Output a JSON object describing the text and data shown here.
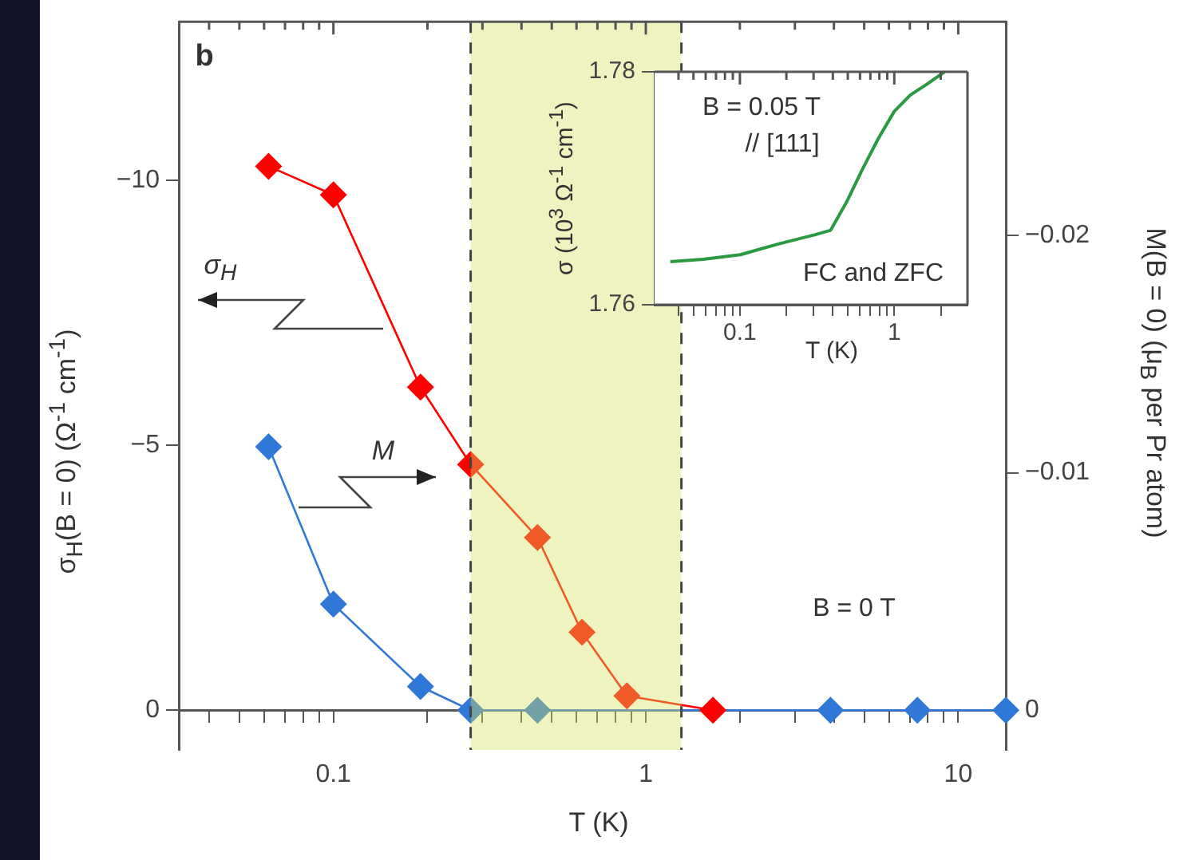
{
  "chart_data": [
    {
      "type": "line",
      "xlabel": "T (K)",
      "ylabel": "σ$_{H}$(B = 0) (Ω$^{-1}$ cm$^{-1}$)",
      "y2label": "M(B = 0) (μ$_{B}$ per Pr atom)",
      "annotations": [
        "b",
        "σ$_{H}$",
        "M",
        "B = 0 T"
      ],
      "log": "x",
      "marker": "diamond",
      "xlim": [
        0.032,
        14.2
      ],
      "xticks": [
        {
          "value": 0.04,
          "label": null
        },
        {
          "value": 0.05,
          "label": null
        },
        {
          "value": 0.06,
          "label": null
        },
        {
          "value": 0.07,
          "label": null
        },
        {
          "value": 0.08,
          "label": null
        },
        {
          "value": 0.09,
          "label": null
        },
        0.1,
        {
          "value": 0.2,
          "label": null
        },
        {
          "value": 0.3,
          "label": null
        },
        {
          "value": 0.4,
          "label": null
        },
        {
          "value": 0.5,
          "label": null
        },
        {
          "value": 0.6,
          "label": null
        },
        {
          "value": 0.7,
          "label": null
        },
        {
          "value": 0.8,
          "label": null
        },
        {
          "value": 0.9,
          "label": null
        },
        1,
        {
          "value": 2,
          "label": null
        },
        {
          "value": 3,
          "label": null
        },
        {
          "value": 4,
          "label": null
        },
        {
          "value": 5,
          "label": null
        },
        {
          "value": 6,
          "label": null
        },
        {
          "value": 7,
          "label": null
        },
        {
          "value": 8,
          "label": null
        },
        {
          "value": 9,
          "label": null
        },
        10
      ],
      "ylim": [
        0.75,
        -13
      ],
      "yticks": [
        {
          "value": 0,
          "label": "0"
        },
        {
          "value": -5,
          "label": "−5"
        },
        {
          "value": -10,
          "label": "−10"
        }
      ],
      "y2lim": [
        0.00167,
        -0.029
      ],
      "y2ticks": [
        {
          "value": 0,
          "label": "0"
        },
        {
          "value": -0.01,
          "label": "−0.01"
        },
        {
          "value": -0.02,
          "label": "−0.02"
        }
      ],
      "bands": [
        {
          "axis": "x",
          "from": 0.275,
          "to": 1.3,
          "color": "#d8e060"
        }
      ],
      "ref_lines": [
        {
          "axis": "x",
          "value": 0.275,
          "color": "#444444",
          "line_style": "dashed"
        },
        {
          "axis": "x",
          "value": 1.3,
          "color": "#444444",
          "line_style": "dashed"
        }
      ],
      "series": [
        {
          "color": "#ff0000",
          "x": [
            0.062,
            0.1,
            0.19,
            0.275,
            0.45,
            0.625,
            0.87,
            1.64
          ],
          "values": [
            -10.27,
            -9.73,
            -6.1,
            -4.64,
            -3.26,
            -1.47,
            -0.27,
            0
          ]
        },
        {
          "color": "#2f78d8",
          "axis": "y2",
          "x": [
            0.062,
            0.1,
            0.19,
            0.275,
            0.45,
            3.9,
            7.4,
            14.2
          ],
          "values": [
            -0.0111,
            -0.00447,
            -0.001,
            0,
            0,
            0,
            0,
            0
          ]
        }
      ]
    },
    {
      "type": "line",
      "xlabel": "T (K)",
      "ylabel": "σ (10$^{3}$ Ω$^{-1}$ cm$^{-1}$)",
      "annotations": [
        "B = 0.05 T",
        "// [111]",
        "FC and ZFC"
      ],
      "log": "x",
      "xlim": [
        0.028,
        2.98
      ],
      "xticks": [
        {
          "value": 0.04,
          "label": null
        },
        {
          "value": 0.05,
          "label": null
        },
        {
          "value": 0.06,
          "label": null
        },
        {
          "value": 0.07,
          "label": null
        },
        {
          "value": 0.08,
          "label": null
        },
        {
          "value": 0.09,
          "label": null
        },
        0.1,
        {
          "value": 0.2,
          "label": null
        },
        {
          "value": 0.3,
          "label": null
        },
        {
          "value": 0.4,
          "label": null
        },
        {
          "value": 0.5,
          "label": null
        },
        {
          "value": 0.6,
          "label": null
        },
        {
          "value": 0.7,
          "label": null
        },
        {
          "value": 0.8,
          "label": null
        },
        {
          "value": 0.9,
          "label": null
        },
        1,
        {
          "value": 2,
          "label": null
        }
      ],
      "ylim": [
        1.76,
        1.78
      ],
      "yticks": [
        1.76,
        1.78
      ],
      "series": [
        {
          "color": "#2a9a40",
          "x": [
            0.0354,
            0.058,
            0.1007,
            0.175,
            0.305,
            0.387,
            0.49,
            0.62,
            0.79,
            1.0,
            1.27,
            1.61,
            2.12
          ],
          "values": [
            1.7637,
            1.7639,
            1.7643,
            1.7652,
            1.766,
            1.7664,
            1.7688,
            1.7716,
            1.7743,
            1.7766,
            1.778,
            1.7789,
            1.78
          ]
        }
      ]
    }
  ]
}
